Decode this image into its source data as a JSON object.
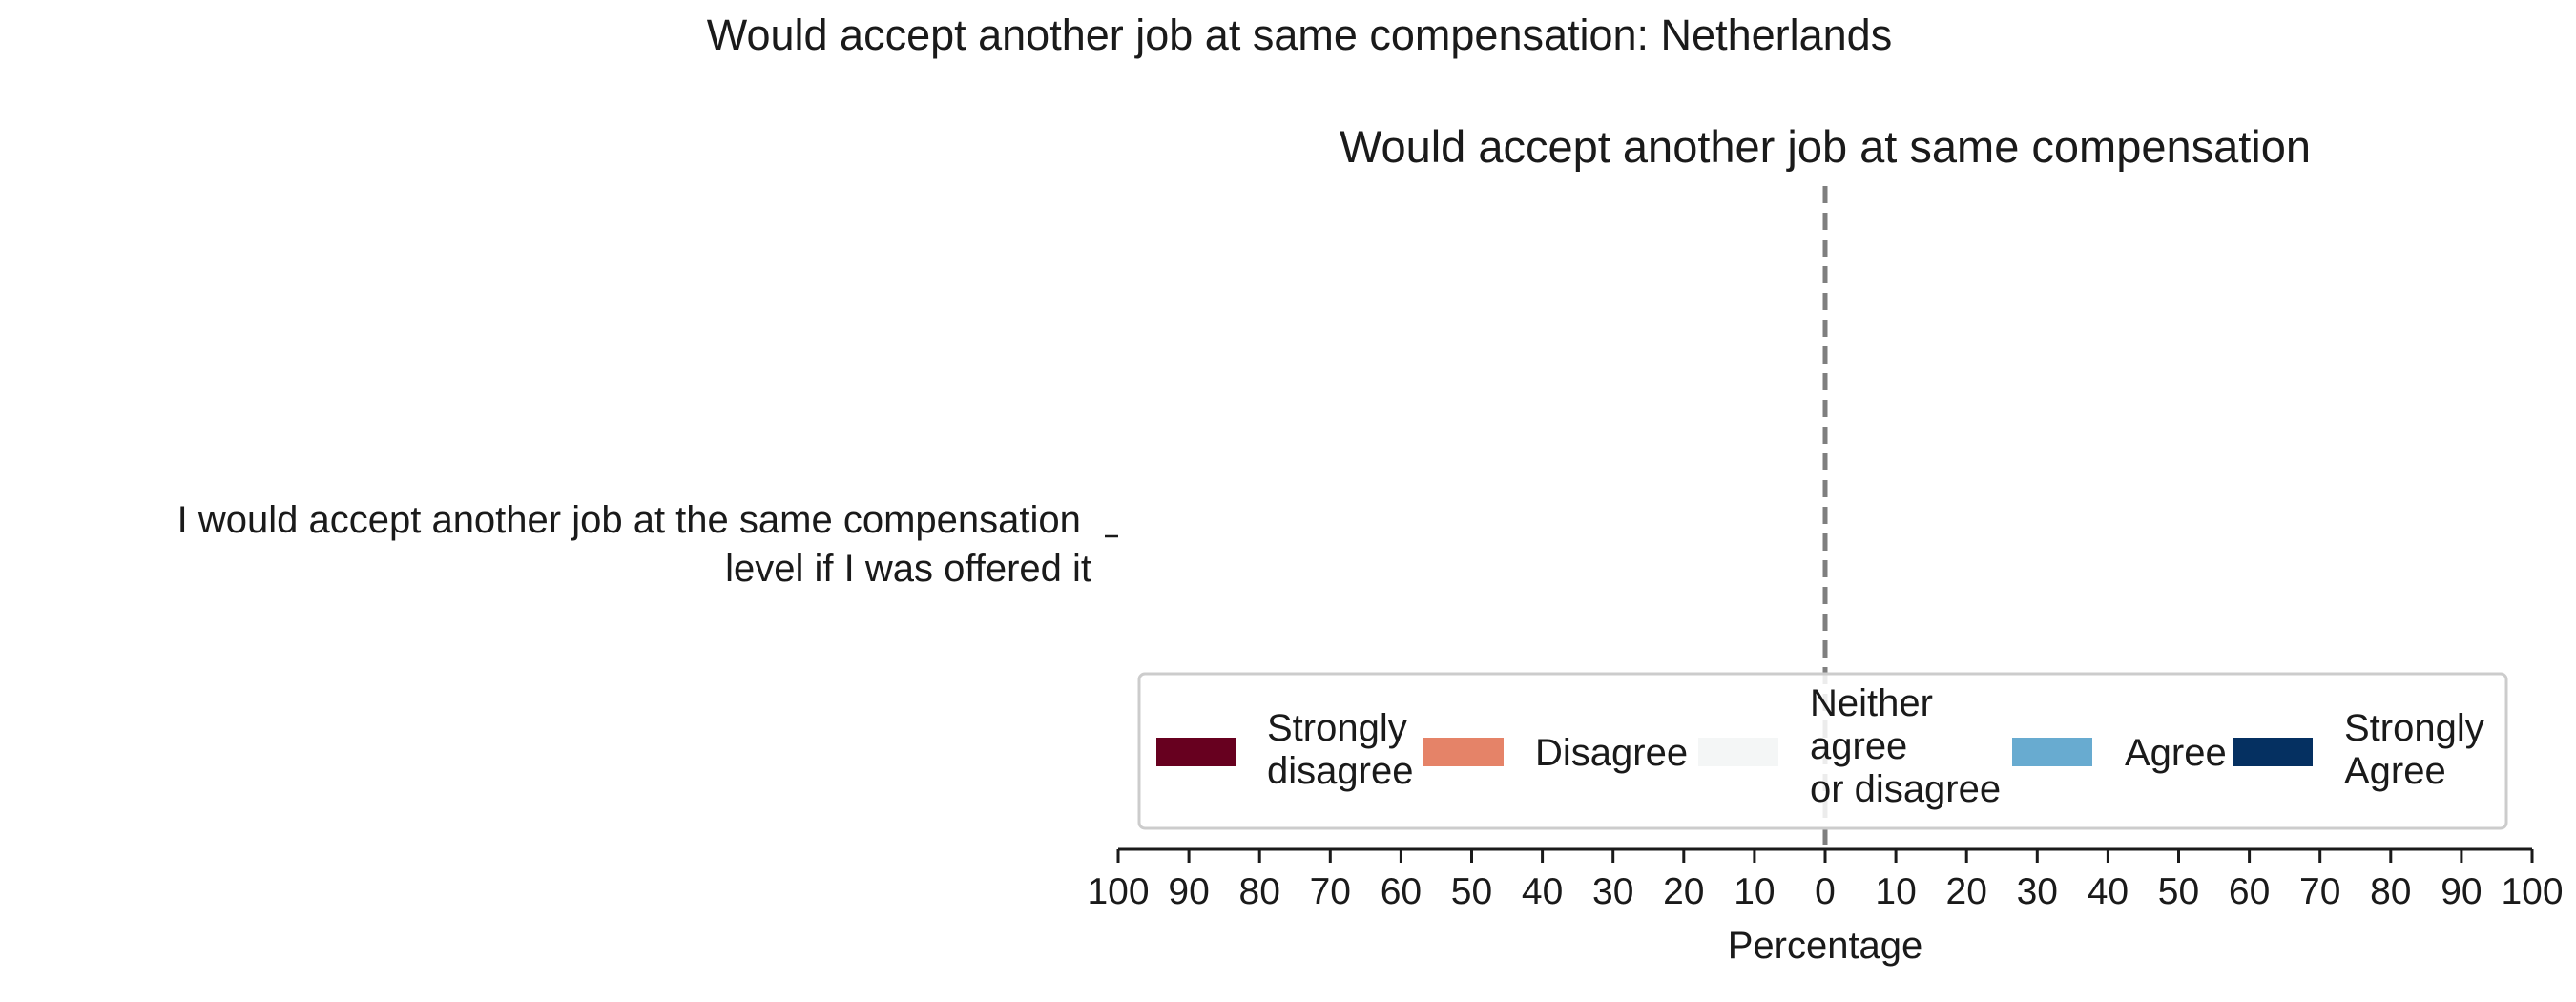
{
  "chart_data": {
    "type": "bar",
    "orientation": "horizontal",
    "stacked": "diverging",
    "title": "Would accept another job at same compensation: Netherlands",
    "subtitle": "Would accept another job at same compensation",
    "xlabel": "Percentage",
    "ylabel": "",
    "xlim": [
      -100,
      100
    ],
    "x_ticks": [
      -100,
      -90,
      -80,
      -70,
      -60,
      -50,
      -40,
      -30,
      -20,
      -10,
      0,
      10,
      20,
      30,
      40,
      50,
      60,
      70,
      80,
      90,
      100
    ],
    "x_tick_labels": [
      "100",
      "90",
      "80",
      "70",
      "60",
      "50",
      "40",
      "30",
      "20",
      "10",
      "0",
      "10",
      "20",
      "30",
      "40",
      "50",
      "60",
      "70",
      "80",
      "90",
      "100"
    ],
    "categories": [
      "I would accept another job at the same compensation level if I was offered it"
    ],
    "category_label_lines": [
      [
        "I would accept another job at the same compensation",
        "level if I was offered it"
      ]
    ],
    "center_line": {
      "x": 0,
      "style": "dashed",
      "color": "#7f7f7f"
    },
    "grid": false,
    "legend": {
      "placement": "lower-center",
      "entries": [
        {
          "label_lines": [
            "Strongly",
            "disagree"
          ],
          "color": "#67001f"
        },
        {
          "label_lines": [
            "Disagree"
          ],
          "color": "#e58368"
        },
        {
          "label_lines": [
            "Neither",
            "agree",
            "or disagree"
          ],
          "color": "#f4f6f6"
        },
        {
          "label_lines": [
            "Agree"
          ],
          "color": "#68abd0"
        },
        {
          "label_lines": [
            "Strongly",
            "Agree"
          ],
          "color": "#053061"
        }
      ]
    },
    "series": [
      {
        "name": "Strongly disagree",
        "values": [
          null
        ],
        "color": "#67001f"
      },
      {
        "name": "Disagree",
        "values": [
          null
        ],
        "color": "#e58368"
      },
      {
        "name": "Neither agree or disagree",
        "values": [
          null
        ],
        "color": "#f4f6f6"
      },
      {
        "name": "Agree",
        "values": [
          null
        ],
        "color": "#68abd0"
      },
      {
        "name": "Strongly Agree",
        "values": [
          null
        ],
        "color": "#053061"
      }
    ]
  }
}
